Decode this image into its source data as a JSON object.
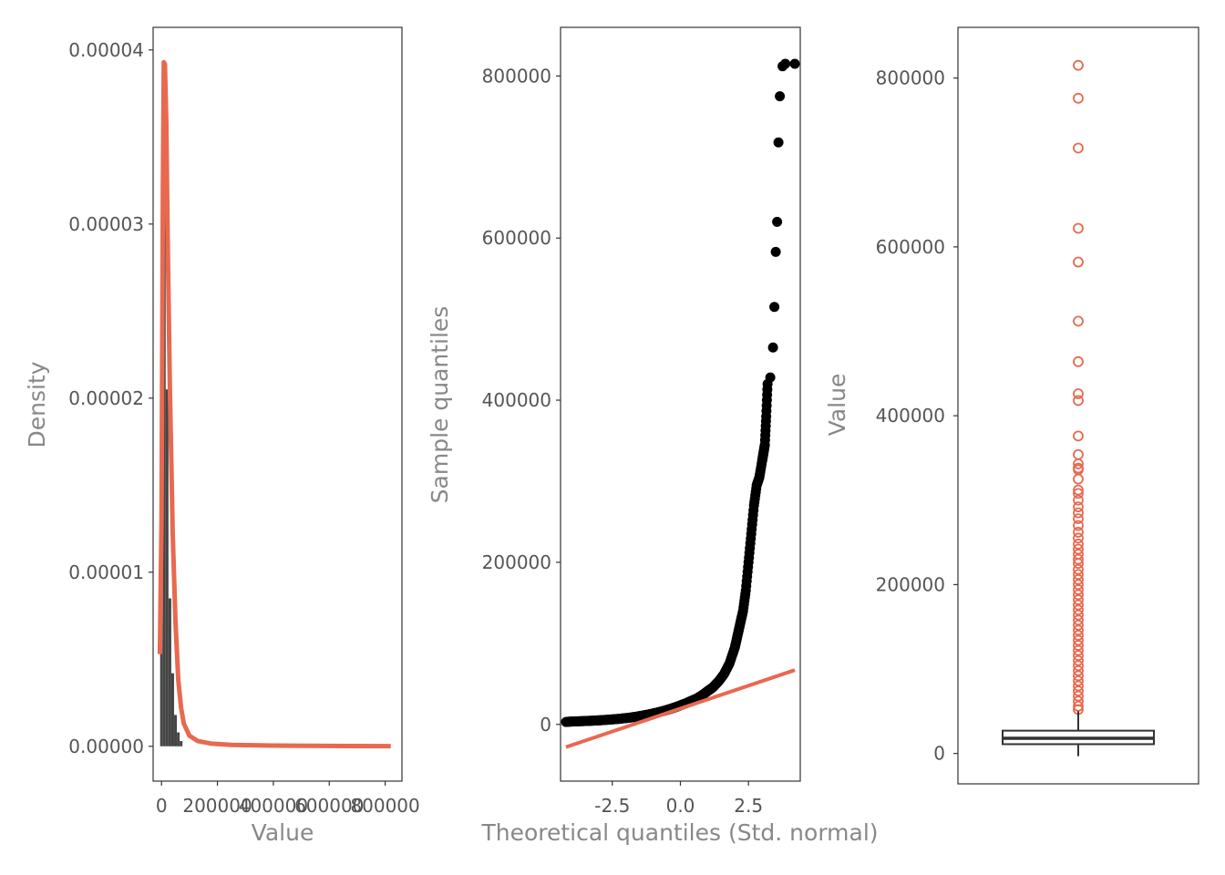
{
  "colors": {
    "accent": "#E8694F",
    "bars": "#444444",
    "points": "#000000",
    "frame": "#333333",
    "text": "#555555",
    "title": "#888888"
  },
  "chart_data": [
    {
      "type": "bar",
      "subtype": "histogram_with_density",
      "xlabel": "Value",
      "ylabel": "Density",
      "xticks": [
        "0",
        "200000",
        "400000",
        "600000",
        "800000"
      ],
      "yticks": [
        "0.00000",
        "0.00001",
        "0.00002",
        "0.00003",
        "0.00004"
      ],
      "xlim": [
        -30000,
        860000
      ],
      "ylim": [
        -2e-06,
        4.13e-05
      ],
      "histogram": {
        "color": "#444444",
        "x": [
          0,
          10000,
          20000,
          30000,
          40000,
          50000,
          60000,
          70000
        ],
        "values": [
          1.18e-05,
          3.6e-05,
          2.05e-05,
          8.5e-06,
          4.2e-06,
          1.8e-06,
          8e-07,
          3e-07
        ]
      },
      "density": {
        "color": "#E8694F",
        "x": [
          -6000,
          0,
          5000,
          8000,
          12000,
          17000,
          22000,
          30000,
          40000,
          50000,
          60000,
          70000,
          80000,
          100000,
          130000,
          180000,
          250000,
          400000,
          600000,
          800000,
          820000
        ],
        "y": [
          5.3e-06,
          1.3e-05,
          3.2e-05,
          3.93e-05,
          3.92e-05,
          3.6e-05,
          2.9e-05,
          2.05e-05,
          1.22e-05,
          7.2e-06,
          3.8e-06,
          2.2e-06,
          1.3e-06,
          6e-07,
          3e-07,
          1.5e-07,
          8e-08,
          4e-08,
          2e-08,
          1e-08,
          1e-08
        ]
      }
    },
    {
      "type": "scatter",
      "subtype": "qq_plot",
      "xlabel": "Theoretical quantiles (Std. normal)",
      "ylabel": "Sample quantiles",
      "xticks": [
        "-2.5",
        "0.0",
        "2.5"
      ],
      "yticks": [
        "0",
        "200000",
        "400000",
        "600000",
        "800000"
      ],
      "xlim": [
        -4.4,
        4.4
      ],
      "ylim": [
        -70000,
        860000
      ],
      "reference_line": {
        "color": "#E8694F",
        "x": [
          -4.2,
          4.2
        ],
        "y": [
          -28000,
          67000
        ]
      },
      "points": {
        "color": "#000000",
        "x": [
          -4.2,
          -4.0,
          -3.8,
          -3.6,
          -3.4,
          -3.2,
          -3.0,
          -2.8,
          -2.6,
          -2.4,
          -2.2,
          -2.0,
          -1.8,
          -1.6,
          -1.4,
          -1.2,
          -1.0,
          -0.8,
          -0.6,
          -0.4,
          -0.2,
          0.0,
          0.2,
          0.4,
          0.6,
          0.8,
          1.0,
          1.2,
          1.4,
          1.6,
          1.8,
          2.0,
          2.1,
          2.2,
          2.3,
          2.4,
          2.5,
          2.6,
          2.7,
          2.8,
          2.9,
          3.0,
          3.05,
          3.1,
          3.15,
          3.2,
          3.3,
          3.4,
          3.45,
          3.5,
          3.55,
          3.6,
          3.65,
          3.75,
          3.85,
          4.2
        ],
        "y": [
          3000,
          3500,
          3800,
          4000,
          4300,
          4600,
          5000,
          5400,
          5900,
          6400,
          7000,
          7800,
          8600,
          9600,
          10800,
          12000,
          13500,
          15000,
          16800,
          18800,
          21000,
          23500,
          26000,
          29000,
          32000,
          36000,
          41000,
          46000,
          53000,
          62000,
          75000,
          95000,
          110000,
          125000,
          140000,
          165000,
          200000,
          235000,
          270000,
          295000,
          305000,
          325000,
          335000,
          345000,
          380000,
          420000,
          428000,
          465000,
          515000,
          583000,
          620000,
          718000,
          775000,
          812000,
          815000,
          815000
        ]
      }
    },
    {
      "type": "box",
      "xlabel": "",
      "ylabel": "Value",
      "yticks": [
        "0",
        "200000",
        "400000",
        "600000",
        "800000"
      ],
      "ylim": [
        -36000,
        860000
      ],
      "box": {
        "whisker_low": 0,
        "q1": 11000,
        "median": 18000,
        "q3": 27000,
        "whisker_high": 50000,
        "color": "#333333"
      },
      "outliers": {
        "color": "#E8694F",
        "values": [
          815000,
          776000,
          717000,
          622000,
          582000,
          512000,
          464000,
          426000,
          418000,
          376000,
          354000,
          343000,
          338000,
          336000,
          325000,
          312000,
          308000,
          300000,
          292000,
          285000,
          278000,
          270000,
          262000,
          255000,
          248000,
          242000,
          236000,
          230000,
          225000,
          218000,
          212000,
          206000,
          200000,
          194000,
          188000,
          182000,
          176000,
          170000,
          164000,
          158000,
          152000,
          146000,
          140000,
          134000,
          128000,
          122000,
          116000,
          110000,
          104000,
          98000,
          92000,
          86000,
          80000,
          74000,
          68000,
          62000,
          56000,
          52000
        ]
      }
    }
  ]
}
